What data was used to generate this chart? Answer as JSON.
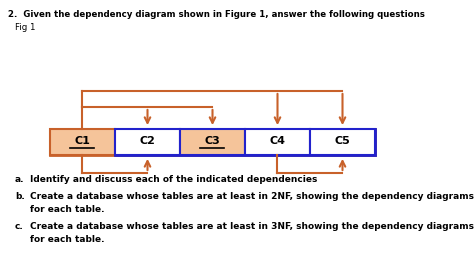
{
  "title_text": "2.  Given the dependency diagram shown in Figure 1, answer the following questions",
  "fig_label": "Fig 1",
  "orange_color": "#C8612A",
  "blue_color": "#2222CC",
  "box_fill_orange": "#F5C49A",
  "items_a": "a.\tIdentify and discuss each of the indicated dependencies",
  "items_b_line1": "b.\tCreate a database whose tables are at least in 2NF, showing the dependency diagrams",
  "items_b_line2": "\tfor each table.",
  "items_c_line1": "c.\tCreate a database whose tables are at least in 3NF, showing the dependency diagrams",
  "items_c_line2": "\tfor each table.",
  "bg_color": "white"
}
